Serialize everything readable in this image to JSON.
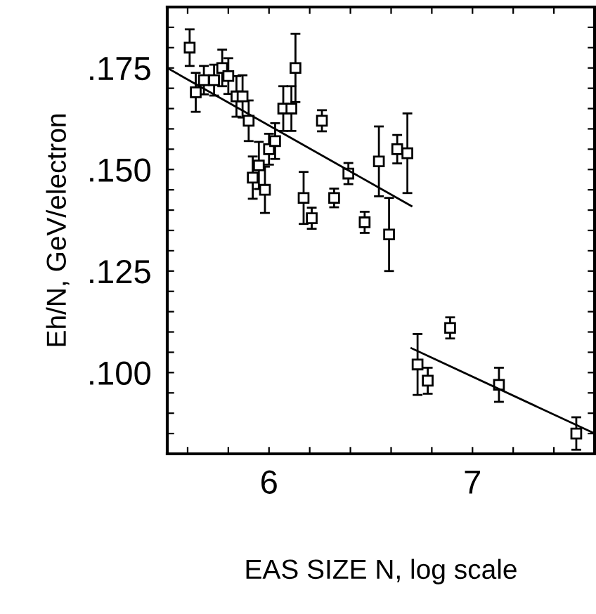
{
  "chart_data": {
    "type": "scatter",
    "xlabel": "EAS SIZE N, log scale",
    "ylabel": "Eh/N, GeV/electron",
    "xlim": [
      5.5,
      7.6
    ],
    "ylim": [
      0.08,
      0.19
    ],
    "xticks": [
      {
        "value": 5.6,
        "label": null
      },
      {
        "value": 5.8,
        "label": null
      },
      6,
      {
        "value": 6.2,
        "label": null
      },
      {
        "value": 6.4,
        "label": null
      },
      {
        "value": 6.6,
        "label": null
      },
      {
        "value": 6.8,
        "label": null
      },
      7,
      {
        "value": 7.2,
        "label": null
      },
      {
        "value": 7.4,
        "label": null
      }
    ],
    "yticks": [
      {
        "value": 0.085,
        "label": null
      },
      {
        "value": 0.09,
        "label": null
      },
      {
        "value": 0.095,
        "label": null
      },
      {
        "value": 0.1,
        "label": ".100"
      },
      {
        "value": 0.105,
        "label": null
      },
      {
        "value": 0.11,
        "label": null
      },
      {
        "value": 0.115,
        "label": null
      },
      {
        "value": 0.12,
        "label": null
      },
      {
        "value": 0.125,
        "label": ".125"
      },
      {
        "value": 0.13,
        "label": null
      },
      {
        "value": 0.135,
        "label": null
      },
      {
        "value": 0.14,
        "label": null
      },
      {
        "value": 0.145,
        "label": null
      },
      {
        "value": 0.15,
        "label": ".150"
      },
      {
        "value": 0.155,
        "label": null
      },
      {
        "value": 0.16,
        "label": null
      },
      {
        "value": 0.165,
        "label": null
      },
      {
        "value": 0.17,
        "label": null
      },
      {
        "value": 0.175,
        "label": ".175"
      },
      {
        "value": 0.18,
        "label": null
      },
      {
        "value": 0.185,
        "label": null
      }
    ],
    "grid": false,
    "series": [
      {
        "color": "#000000",
        "marker": "square",
        "x": [
          5.61,
          5.64,
          5.68,
          5.73,
          5.77,
          5.8,
          5.84,
          5.87,
          5.9,
          5.92,
          5.95,
          5.98,
          6.0,
          6.03,
          6.07,
          6.11,
          6.13,
          6.17,
          6.21,
          6.26,
          6.32,
          6.39,
          6.47,
          6.54,
          6.59,
          6.63,
          6.68,
          6.73,
          6.78,
          6.89,
          7.13,
          7.51
        ],
        "values": [
          0.18,
          0.169,
          0.172,
          0.172,
          0.175,
          0.173,
          0.168,
          0.168,
          0.162,
          0.148,
          0.151,
          0.145,
          0.155,
          0.157,
          0.165,
          0.165,
          0.175,
          0.143,
          0.138,
          0.162,
          0.143,
          0.149,
          0.137,
          0.152,
          0.134,
          0.155,
          0.154,
          0.102,
          0.098,
          0.111,
          0.097,
          0.085
        ],
        "errors": [
          0.0045,
          0.0048,
          0.0035,
          0.0038,
          0.0045,
          0.0044,
          0.005,
          0.0052,
          0.005,
          0.0052,
          0.0058,
          0.0057,
          0.0038,
          0.0044,
          0.0055,
          0.0055,
          0.0084,
          0.0064,
          0.0026,
          0.0026,
          0.0023,
          0.0026,
          0.0026,
          0.0086,
          0.009,
          0.0035,
          0.0098,
          0.0075,
          0.0032,
          0.0026,
          0.0042,
          0.004
        ]
      },
      {
        "type": "line",
        "color": "#000000",
        "marker": "none",
        "x": [
          5.5,
          6.7
        ],
        "values": [
          0.175,
          0.141
        ]
      },
      {
        "type": "line",
        "color": "#000000",
        "marker": "none",
        "x": [
          6.7,
          7.6
        ],
        "values": [
          0.106,
          0.085
        ]
      }
    ]
  }
}
